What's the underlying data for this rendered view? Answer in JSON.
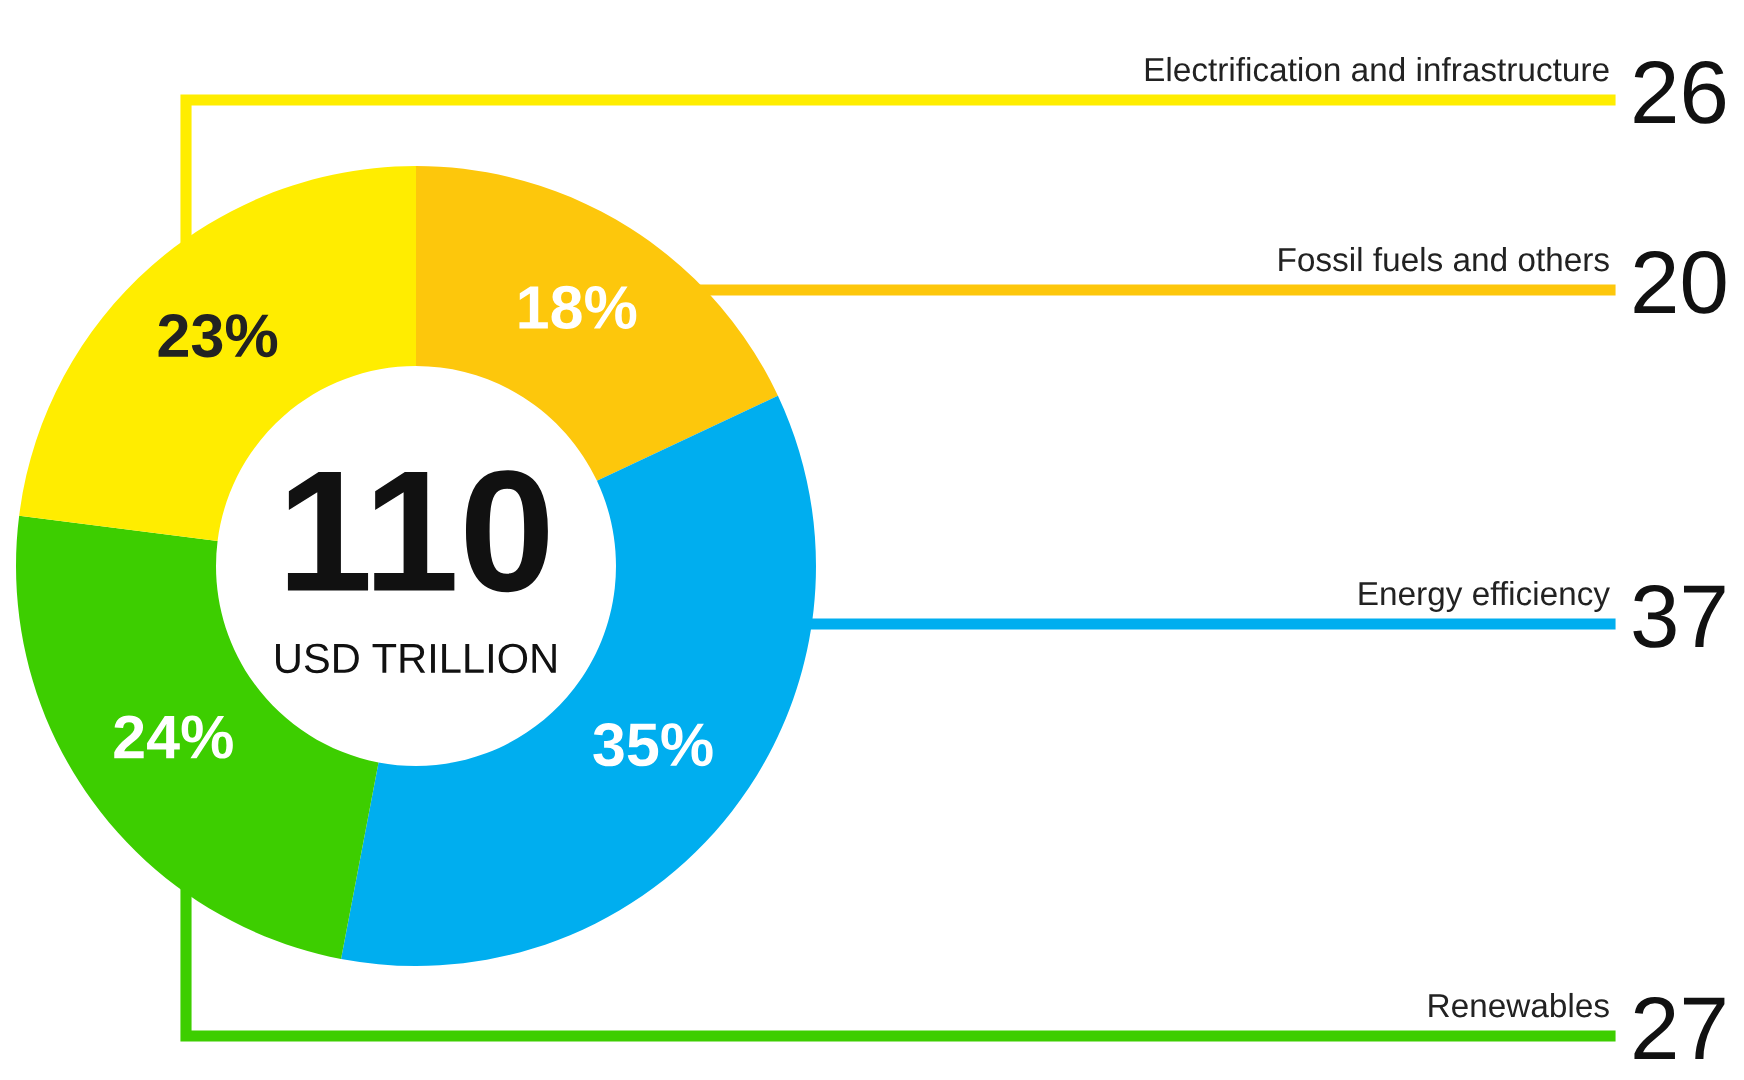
{
  "chart_data": {
    "type": "donut",
    "categories": [
      "Fossil fuels and others",
      "Energy efficiency",
      "Renewables",
      "Electrification and infrastructure"
    ],
    "values": [
      18,
      35,
      24,
      23
    ],
    "colors": [
      "#fdc70c",
      "#00aeef",
      "#3dce00",
      "#ffed00"
    ],
    "value_labels": [
      "18%",
      "35%",
      "24%",
      "23%"
    ],
    "legend": false,
    "annotations": [
      "110",
      "USD TRILLION",
      "20",
      "37",
      "27",
      "26"
    ]
  }
}
